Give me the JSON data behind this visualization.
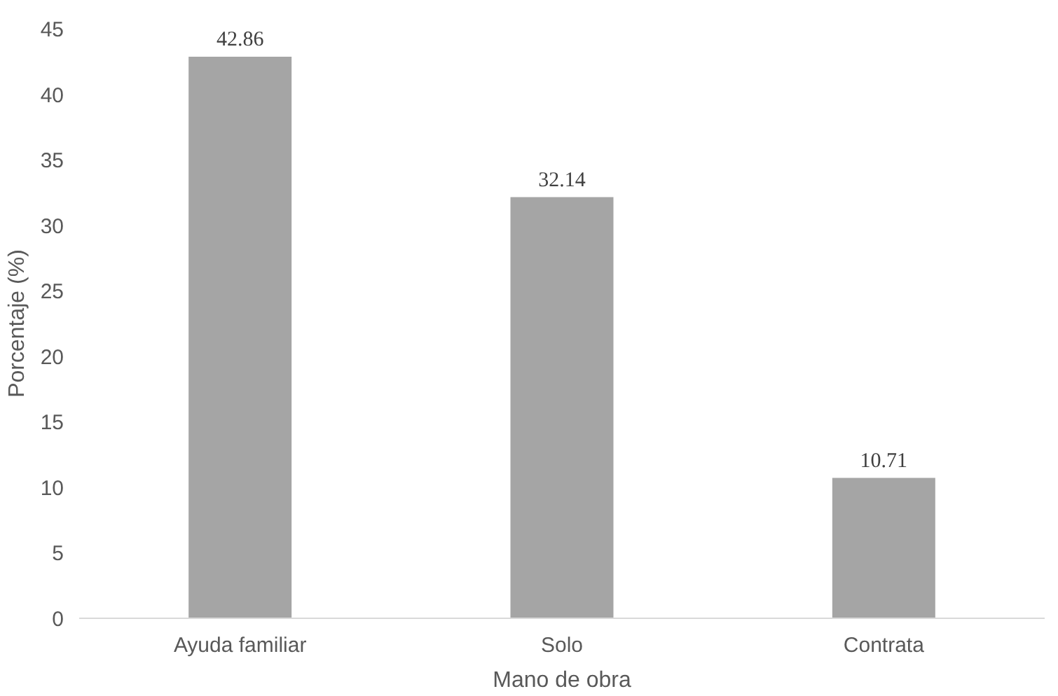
{
  "chart_data": {
    "type": "bar",
    "xlabel": "Mano de obra",
    "ylabel": "Porcentaje (%)",
    "categories": [
      "Ayuda familiar",
      "Solo",
      "Contrata"
    ],
    "values": [
      42.86,
      32.14,
      10.71
    ],
    "color": "#a5a5a5",
    "ylim": [
      0,
      45
    ],
    "yticks": [
      0,
      5,
      10,
      15,
      20,
      25,
      30,
      35,
      40,
      45
    ],
    "grid": false,
    "data_labels": true
  }
}
